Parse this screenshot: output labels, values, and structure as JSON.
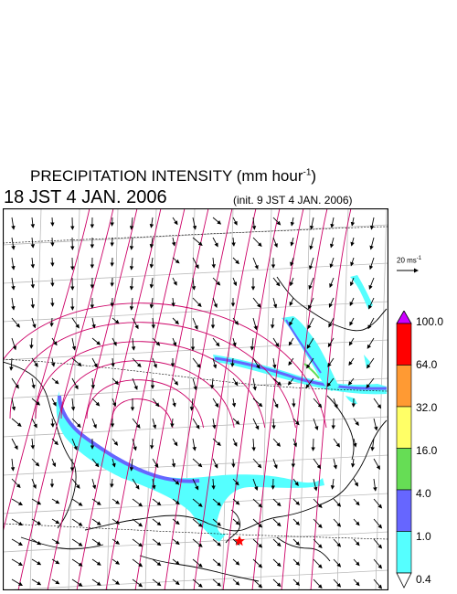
{
  "title": {
    "main": "PRECIPITATION INTENSITY (mm hour",
    "exponent": "-1",
    "close": ")"
  },
  "valid_time": "18 JST 4 JAN. 2006",
  "init_time": "(init. 9 JST 4 JAN. 2006)",
  "reference_vector": {
    "label": "20 ms",
    "exponent": "-1"
  },
  "colorbar": {
    "labels": [
      "100.0",
      "64.0",
      "32.0",
      "16.0",
      "4.0",
      "1.0",
      "0.4"
    ],
    "colors": [
      "#cc00ff",
      "#ff0000",
      "#ff9a33",
      "#ffff66",
      "#66dd55",
      "#6666ff",
      "#55ffff",
      "#ffffff"
    ],
    "units": "mm hour-1"
  },
  "map": {
    "precip_color": "#55ffff",
    "band_color": "#6666ff",
    "contour_color": "#cc0066",
    "grid_color": "#bbbbbb",
    "marker": "star-icon",
    "marker_color": "#ff0000"
  }
}
